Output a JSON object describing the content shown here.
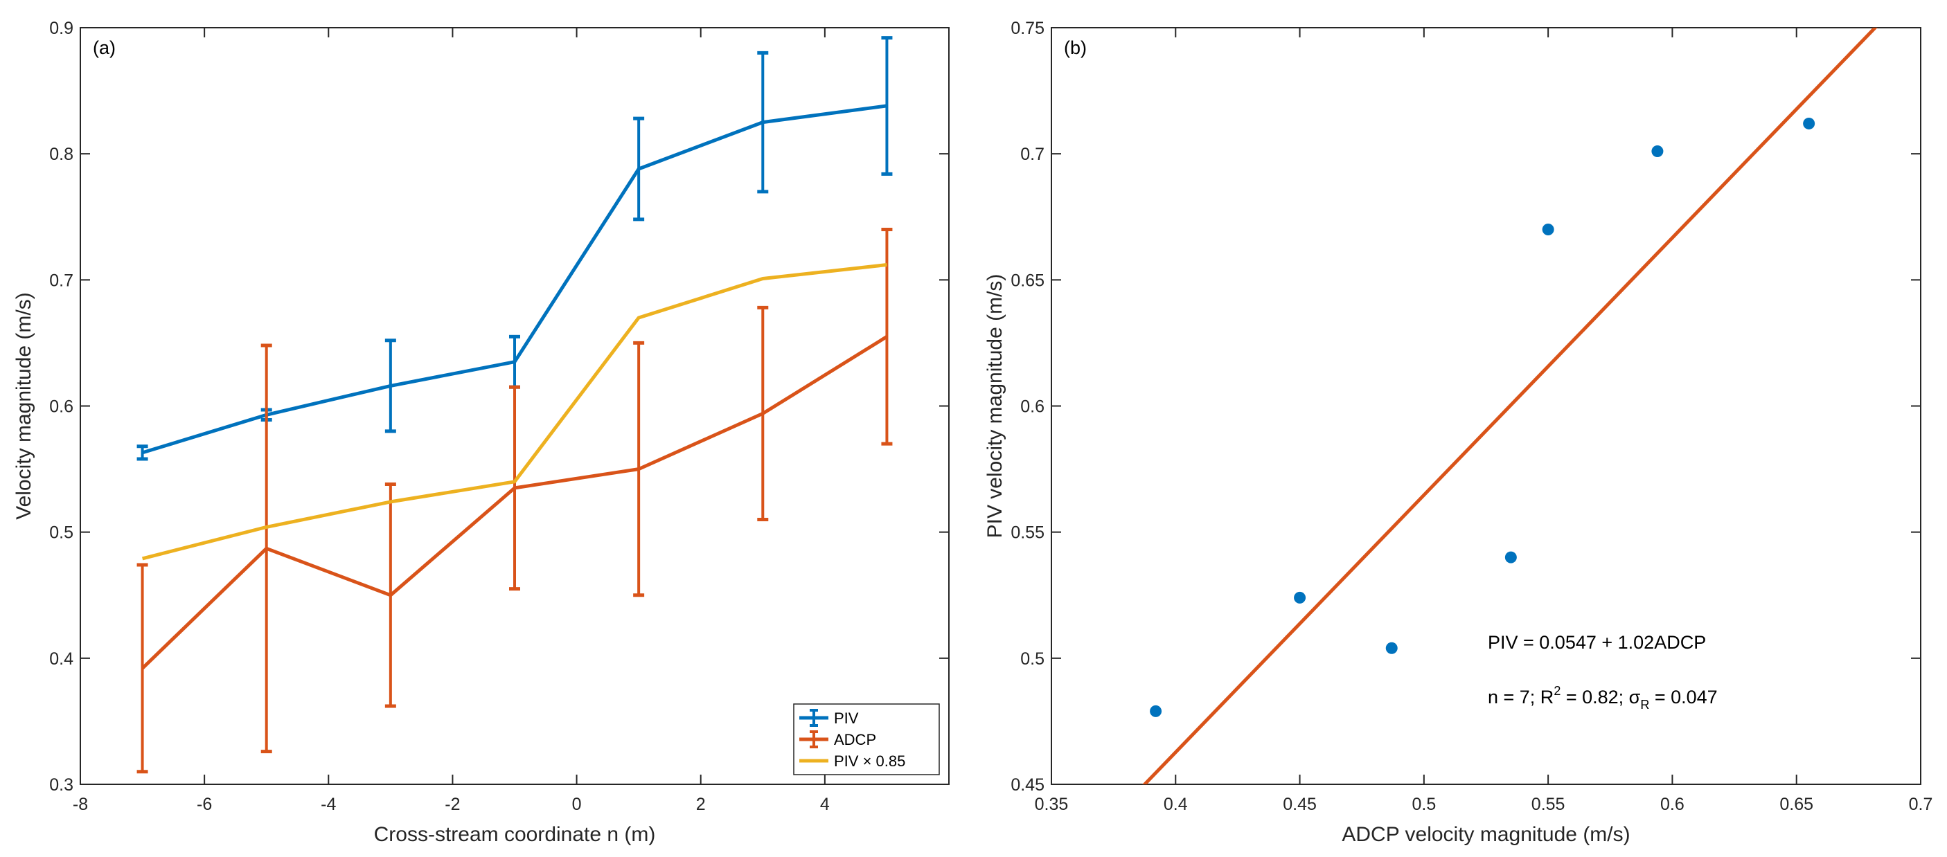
{
  "chart_data": [
    {
      "type": "line",
      "panel_label": "(a)",
      "xlabel": "Cross-stream coordinate n (m)",
      "ylabel": "Velocity magnitude (m/s)",
      "xlim": [
        -8,
        6
      ],
      "ylim": [
        0.3,
        0.9
      ],
      "x_ticks": [
        -8,
        -6,
        -4,
        -2,
        0,
        2,
        4
      ],
      "y_ticks": [
        0.3,
        0.4,
        0.5,
        0.6,
        0.7,
        0.8,
        0.9
      ],
      "x_tick_labels": [
        "-8",
        "-6",
        "-4",
        "-2",
        "0",
        "2",
        "4"
      ],
      "y_tick_labels": [
        "0.3",
        "0.4",
        "0.5",
        "0.6",
        "0.7",
        "0.8",
        "0.9"
      ],
      "x": [
        -7,
        -5,
        -3,
        -1,
        1,
        3,
        5
      ],
      "legend_position": "bottom-right",
      "series": [
        {
          "name": "PIV",
          "color": "#0072BD",
          "values": [
            0.563,
            0.593,
            0.616,
            0.635,
            0.788,
            0.825,
            0.838
          ],
          "error": [
            0.005,
            0.004,
            0.036,
            0.02,
            0.04,
            0.055,
            0.054
          ],
          "errorbars": true
        },
        {
          "name": "ADCP",
          "color": "#D95319",
          "values": [
            0.392,
            0.487,
            0.45,
            0.535,
            0.55,
            0.594,
            0.655
          ],
          "error": [
            0.082,
            0.161,
            0.088,
            0.08,
            0.1,
            0.084,
            0.085
          ],
          "errorbars": true
        },
        {
          "name": "PIV × 0.85",
          "color": "#EDB120",
          "values": [
            0.479,
            0.504,
            0.524,
            0.54,
            0.67,
            0.701,
            0.712
          ],
          "errorbars": false
        }
      ]
    },
    {
      "type": "scatter",
      "panel_label": "(b)",
      "xlabel": "ADCP velocity magnitude (m/s)",
      "ylabel": "PIV velocity magnitude (m/s)",
      "xlim": [
        0.35,
        0.7
      ],
      "ylim": [
        0.45,
        0.75
      ],
      "x_ticks": [
        0.35,
        0.4,
        0.45,
        0.5,
        0.55,
        0.6,
        0.65,
        0.7
      ],
      "y_ticks": [
        0.45,
        0.5,
        0.55,
        0.6,
        0.65,
        0.7,
        0.75
      ],
      "x_tick_labels": [
        "0.35",
        "0.4",
        "0.45",
        "0.5",
        "0.55",
        "0.6",
        "0.65",
        "0.7"
      ],
      "y_tick_labels": [
        "0.45",
        "0.5",
        "0.55",
        "0.6",
        "0.65",
        "0.7",
        "0.75"
      ],
      "points": {
        "x": [
          0.392,
          0.45,
          0.487,
          0.535,
          0.55,
          0.594,
          0.655
        ],
        "y": [
          0.479,
          0.524,
          0.504,
          0.54,
          0.67,
          0.701,
          0.712
        ],
        "color": "#0072BD"
      },
      "fit": {
        "intercept": 0.0547,
        "slope": 1.02,
        "color": "#D95319"
      },
      "annotations": {
        "equation": "PIV = 0.0547 + 1.02ADCP",
        "stats_prefix": "n = 7; R",
        "stats_sup": "2",
        "stats_mid": " = 0.82; ",
        "stats_sigma": "σ",
        "stats_sub": "R",
        "stats_end": " = 0.047"
      }
    }
  ]
}
